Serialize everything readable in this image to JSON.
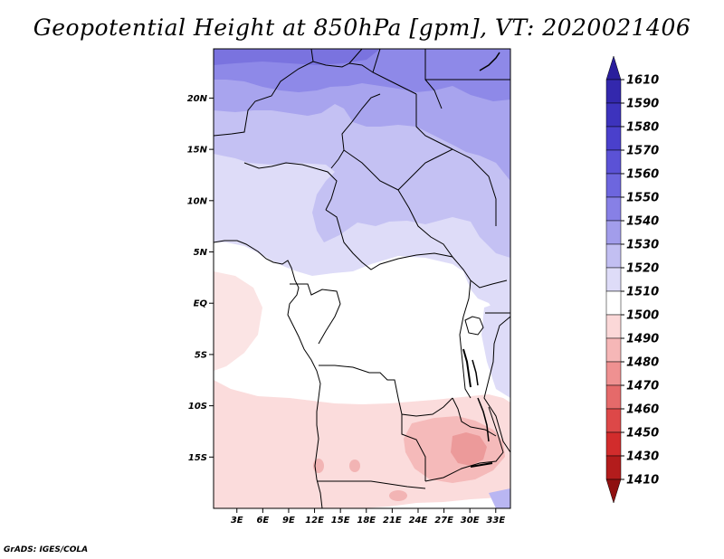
{
  "map": {
    "title": "Geopotential Height at 850hPa [gpm], VT: 2020021406",
    "variable": "Geopotential Height",
    "level": "850hPa",
    "units": "gpm",
    "valid_time": "2020021406",
    "credit": "GrADS: IGES/COLA",
    "lat_labels": [
      "20N",
      "15N",
      "10N",
      "5N",
      "EQ",
      "5S",
      "10S",
      "15S"
    ],
    "lat_values": [
      20,
      15,
      10,
      5,
      0,
      -5,
      -10,
      -15
    ],
    "lon_labels": [
      "3E",
      "6E",
      "9E",
      "12E",
      "15E",
      "18E",
      "21E",
      "24E",
      "27E",
      "30E",
      "33E"
    ],
    "lon_values": [
      3,
      6,
      9,
      12,
      15,
      18,
      21,
      24,
      27,
      30,
      33
    ],
    "lon_range": [
      0.3,
      34.7
    ],
    "lat_range": [
      -20.0,
      24.8
    ]
  },
  "colorbar": {
    "labels": [
      "1610",
      "1590",
      "1580",
      "1570",
      "1560",
      "1550",
      "1540",
      "1530",
      "1520",
      "1510",
      "1500",
      "1490",
      "1480",
      "1470",
      "1460",
      "1450",
      "1430",
      "1410"
    ],
    "colors": [
      "#2a1e9c",
      "#3328ad",
      "#3d33bd",
      "#4a40cc",
      "#5b52d6",
      "#6d66de",
      "#8780e6",
      "#a29deb",
      "#c2bff2",
      "#dedcf8",
      "#ffffff",
      "#fbd8d8",
      "#f6b7b7",
      "#ef9191",
      "#e56a6a",
      "#dd4848",
      "#d22c2c",
      "#b31c1c",
      "#8f1010"
    ]
  }
}
